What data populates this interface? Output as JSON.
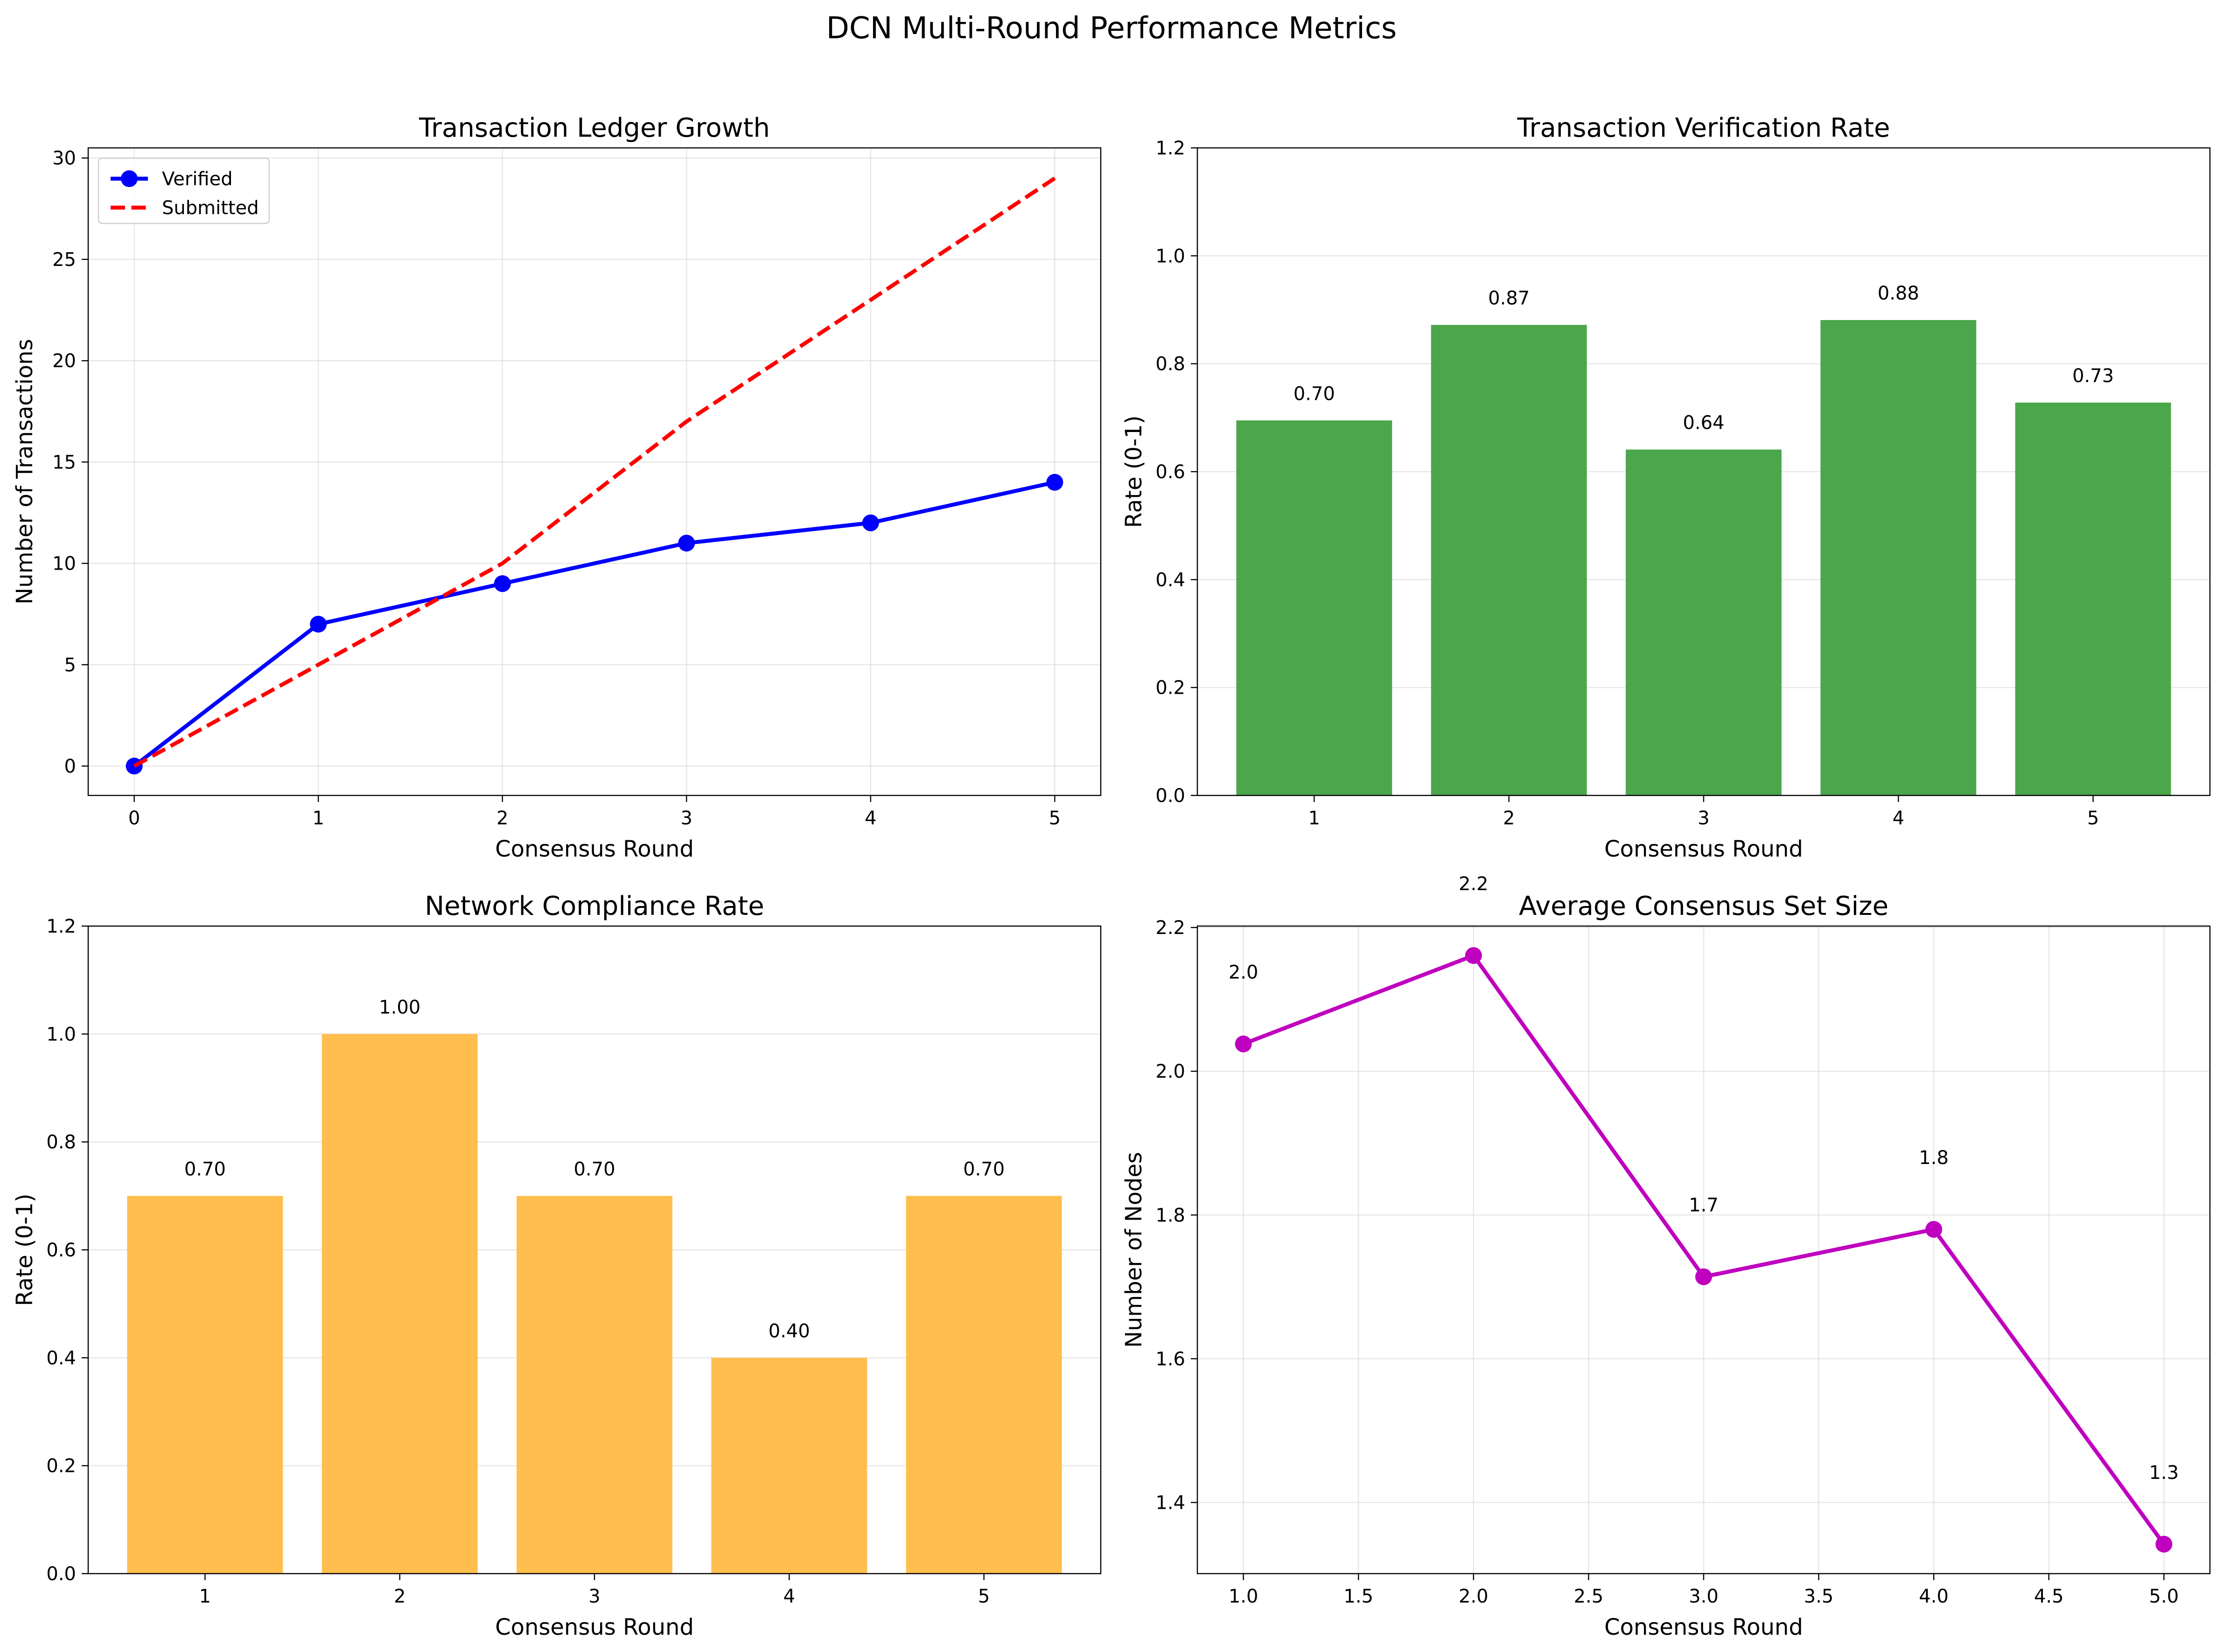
{
  "figure": {
    "title": "DCN Multi-Round Performance Metrics"
  },
  "chart_data": [
    {
      "id": "ledger",
      "type": "line",
      "title": "Transaction Ledger Growth",
      "xlabel": "Consensus Round",
      "ylabel": "Number of Transactions",
      "x": [
        0,
        1,
        2,
        3,
        4,
        5
      ],
      "xlim": [
        -0.25,
        5.25
      ],
      "ylim": [
        -1.45,
        30.5
      ],
      "xticks": [
        0,
        1,
        2,
        3,
        4,
        5
      ],
      "yticks": [
        0,
        5,
        10,
        15,
        20,
        25,
        30
      ],
      "grid": true,
      "legend": "top-left",
      "series": [
        {
          "name": "Verified",
          "values": [
            0,
            7,
            9,
            11,
            12,
            14
          ],
          "color": "#0000ff",
          "style": "solid",
          "marker": "circle"
        },
        {
          "name": "Submitted",
          "values": [
            0,
            5,
            10,
            17,
            23,
            29
          ],
          "color": "#ff0000",
          "style": "dashed",
          "marker": "none"
        }
      ]
    },
    {
      "id": "verification",
      "type": "bar",
      "title": "Transaction Verification Rate",
      "xlabel": "Consensus Round",
      "ylabel": "Rate (0-1)",
      "categories": [
        "1",
        "2",
        "3",
        "4",
        "5"
      ],
      "values": [
        0.695,
        0.872,
        0.641,
        0.881,
        0.728
      ],
      "labels": [
        "0.70",
        "0.87",
        "0.64",
        "0.88",
        "0.73"
      ],
      "ylim": [
        0,
        1.2
      ],
      "yticks": [
        "0.0",
        "0.2",
        "0.4",
        "0.6",
        "0.8",
        "1.0",
        "1.2"
      ],
      "color": "#4ca64c",
      "grid": true
    },
    {
      "id": "compliance",
      "type": "bar",
      "title": "Network Compliance Rate",
      "xlabel": "Consensus Round",
      "ylabel": "Rate (0-1)",
      "categories": [
        "1",
        "2",
        "3",
        "4",
        "5"
      ],
      "values": [
        0.7,
        1.0,
        0.7,
        0.4,
        0.7
      ],
      "labels": [
        "0.70",
        "1.00",
        "0.70",
        "0.40",
        "0.70"
      ],
      "ylim": [
        0,
        1.2
      ],
      "yticks": [
        "0.0",
        "0.2",
        "0.4",
        "0.6",
        "0.8",
        "1.0",
        "1.2"
      ],
      "color": "#ffbe4d",
      "grid": true
    },
    {
      "id": "setsize",
      "type": "line",
      "title": "Average Consensus Set Size",
      "xlabel": "Consensus Round",
      "ylabel": "Number of Nodes",
      "x": [
        1,
        2,
        3,
        4,
        5
      ],
      "values": [
        2.038,
        2.161,
        1.714,
        1.78,
        1.342
      ],
      "labels": [
        "2.0",
        "2.2",
        "1.7",
        "1.8",
        "1.3"
      ],
      "xlim": [
        0.8,
        5.2
      ],
      "ylim": [
        1.301,
        2.202
      ],
      "xticks": [
        "1.0",
        "1.5",
        "2.0",
        "2.5",
        "3.0",
        "3.5",
        "4.0",
        "4.5",
        "5.0"
      ],
      "yticks": [
        "1.4",
        "1.6",
        "1.8",
        "2.0",
        "2.2"
      ],
      "color": "#bf00bf",
      "marker": "circle",
      "grid": true
    }
  ]
}
